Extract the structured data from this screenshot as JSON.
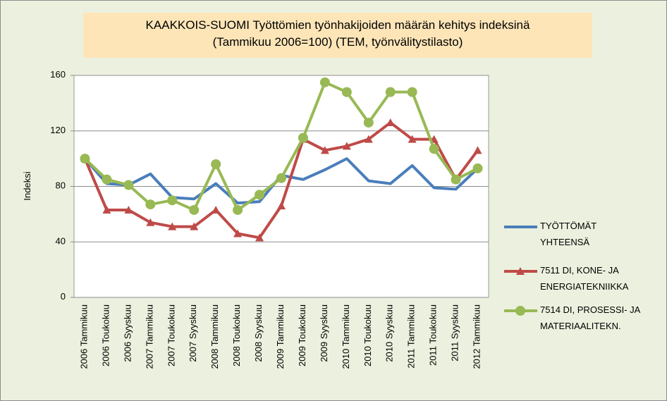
{
  "chart_data": {
    "type": "line",
    "title": "KAAKKOIS-SUOMI  Työttömien työnhakijoiden määrän kehitys indeksinä\n(Tammikuu 2006=100) (TEM, työnvälitystilasto)",
    "ylabel": "Indeksi",
    "categories": [
      "2006 Tammikuu",
      "2006 Toukokuu",
      "2006 Syyskuu",
      "2007 Tammikuu",
      "2007 Toukokuu",
      "2007 Syyskuu",
      "2008 Tammikuu",
      "2008 Toukokuu",
      "2008 Syyskuu",
      "2009 Tammikuu",
      "2009 Toukokuu",
      "2009 Syyskuu",
      "2010 Tammikuu",
      "2010 Toukokuu",
      "2010 Syyskuu",
      "2011 Tammikuu",
      "2011 Toukokuu",
      "2011 Syyskuu",
      "2012 Tammikuu"
    ],
    "series": [
      {
        "name": "TYÖTTÖMÄT\nYHTEENSÄ",
        "color": "#4a7ebb",
        "marker": "none",
        "values": [
          100,
          82,
          81,
          89,
          72,
          71,
          82,
          68,
          69,
          88,
          85,
          92,
          100,
          84,
          82,
          95,
          79,
          78,
          93
        ]
      },
      {
        "name": "7511 DI, KONE- JA\nENERGIATEKNIIKKA",
        "color": "#be4b48",
        "marker": "triangle",
        "values": [
          100,
          63,
          63,
          54,
          51,
          51,
          63,
          46,
          43,
          66,
          114,
          106,
          109,
          114,
          126,
          114,
          114,
          85,
          106
        ]
      },
      {
        "name": "7514 DI, PROSESSI- JA\nMATERIAALITEKN.",
        "color": "#98b954",
        "marker": "circle",
        "values": [
          100,
          85,
          81,
          67,
          70,
          63,
          96,
          63,
          74,
          86,
          115,
          155,
          148,
          126,
          148,
          148,
          107,
          85,
          93
        ]
      }
    ],
    "ylim": [
      0,
      160
    ],
    "yticks": [
      0,
      40,
      80,
      120,
      160
    ],
    "grid": true,
    "legend": "right"
  }
}
